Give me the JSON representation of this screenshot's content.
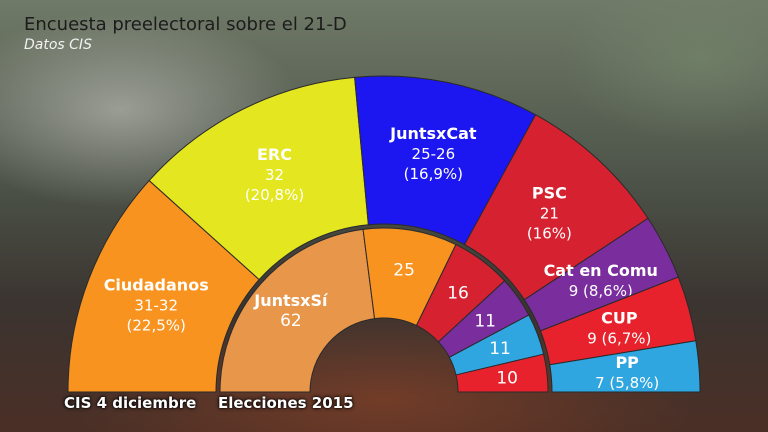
{
  "title": "Encuesta preelectoral sobre el 21-D",
  "subtitle": "Datos CIS",
  "chart_data": [
    {
      "type": "pie",
      "label": "CIS 4 diciembre",
      "series": [
        {
          "name": "Ciudadanos",
          "seats": "31-32",
          "pct": "(22,5%)",
          "value": 31.5,
          "color": "#f7931e"
        },
        {
          "name": "ERC",
          "seats": "32",
          "pct": "(20,8%)",
          "value": 32,
          "color": "#e4e61f"
        },
        {
          "name": "JuntsxCat",
          "seats": "25-26",
          "pct": "(16,9%)",
          "value": 25.5,
          "color": "#1c17f0"
        },
        {
          "name": "PSC",
          "seats": "21",
          "pct": "(16%)",
          "value": 21,
          "color": "#d62230"
        },
        {
          "name": "Cat en Comu",
          "seats": "9 (8,6%)",
          "value": 9,
          "color": "#7a2d9c"
        },
        {
          "name": "CUP",
          "seats": "9 (6,7%)",
          "value": 9,
          "color": "#e8222c"
        },
        {
          "name": "PP",
          "seats": "7 (5,8%)",
          "value": 7,
          "color": "#2fa6e0"
        }
      ]
    },
    {
      "type": "pie",
      "label": "Elecciones 2015",
      "series": [
        {
          "name": "JuntsxSí",
          "seats": "62",
          "value": 62,
          "color": "#e8964a"
        },
        {
          "seats": "25",
          "value": 25,
          "color": "#f7931e"
        },
        {
          "seats": "16",
          "value": 16,
          "color": "#d62230"
        },
        {
          "seats": "11",
          "value": 11,
          "color": "#7a2d9c"
        },
        {
          "seats": "11",
          "value": 11,
          "color": "#2fa6e0"
        },
        {
          "seats": "10",
          "value": 10,
          "color": "#e8222c"
        }
      ]
    }
  ]
}
